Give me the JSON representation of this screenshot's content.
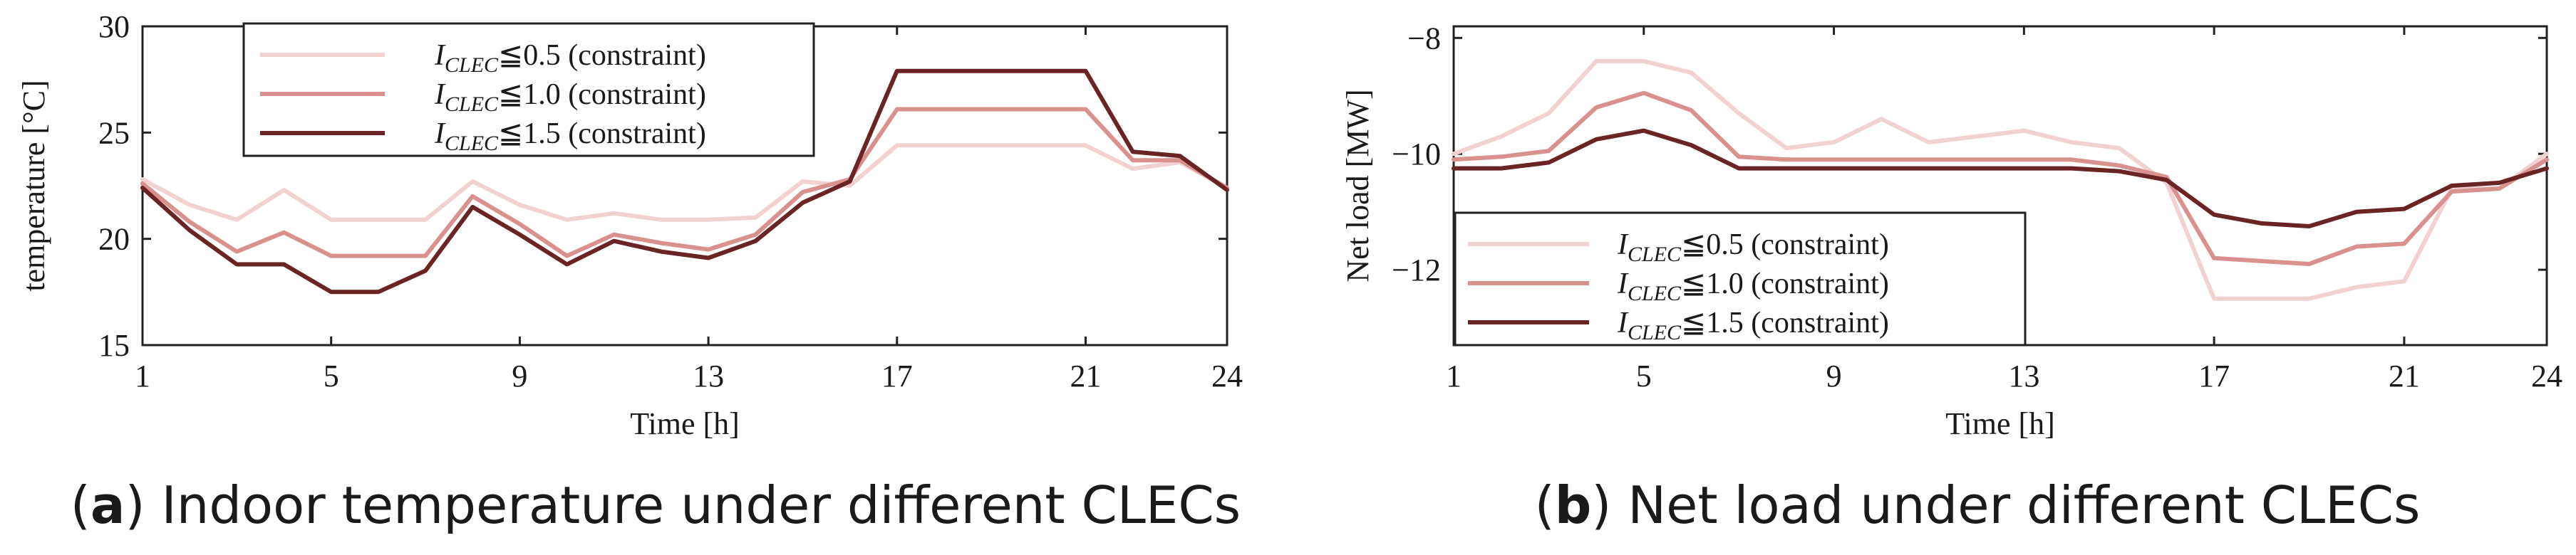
{
  "chart_data": [
    {
      "type": "line",
      "caption_letter": "a",
      "caption_text": "Indoor temperature under different CLECs",
      "xlabel": "Time [h]",
      "ylabel": "temperature [°C]",
      "xlim": [
        1,
        24
      ],
      "ylim": [
        15,
        30
      ],
      "xticks": [
        1,
        5,
        9,
        13,
        17,
        21,
        24
      ],
      "yticks": [
        15,
        20,
        25,
        30
      ],
      "x": [
        1,
        2,
        3,
        4,
        5,
        6,
        7,
        8,
        9,
        10,
        11,
        12,
        13,
        14,
        15,
        16,
        17,
        18,
        19,
        20,
        21,
        22,
        23,
        24
      ],
      "grid": false,
      "legend_position": "top-center",
      "series": [
        {
          "name": "I_CLEC≦0.5 (constraint)",
          "legend_main": "I",
          "legend_sub": "CLEC",
          "legend_rest": "≦0.5 (constraint)",
          "color": "#f2d1d1",
          "values": [
            22.8,
            21.6,
            20.9,
            22.3,
            20.9,
            20.9,
            20.9,
            22.7,
            21.6,
            20.9,
            21.2,
            20.9,
            20.9,
            21.0,
            22.7,
            22.5,
            24.4,
            24.4,
            24.4,
            24.4,
            24.4,
            23.3,
            23.6,
            22.4
          ]
        },
        {
          "name": "I_CLEC≦1.0 (constraint)",
          "legend_main": "I",
          "legend_sub": "CLEC",
          "legend_rest": "≦1.0 (constraint)",
          "color": "#d9918e",
          "values": [
            22.6,
            20.8,
            19.4,
            20.3,
            19.2,
            19.2,
            19.2,
            22.0,
            20.7,
            19.2,
            20.2,
            19.8,
            19.5,
            20.2,
            22.2,
            22.8,
            26.1,
            26.1,
            26.1,
            26.1,
            26.1,
            23.7,
            23.7,
            22.4
          ]
        },
        {
          "name": "I_CLEC≦1.5 (constraint)",
          "legend_main": "I",
          "legend_sub": "CLEC",
          "legend_rest": "≦1.5 (constraint)",
          "color": "#6a2424",
          "values": [
            22.4,
            20.4,
            18.8,
            18.8,
            17.5,
            17.5,
            18.5,
            21.5,
            20.2,
            18.8,
            19.9,
            19.4,
            19.1,
            19.9,
            21.7,
            22.7,
            27.9,
            27.9,
            27.9,
            27.9,
            27.9,
            24.1,
            23.9,
            22.3
          ]
        }
      ]
    },
    {
      "type": "line",
      "caption_letter": "b",
      "caption_text": "Net load under different CLECs",
      "xlabel": "Time [h]",
      "ylabel": "Net load [MW]",
      "xlim": [
        1,
        24
      ],
      "ylim": [
        -13.3,
        -7.8
      ],
      "xticks": [
        1,
        5,
        9,
        13,
        17,
        21,
        24
      ],
      "yticks": [
        -12,
        -10,
        -8
      ],
      "x": [
        1,
        2,
        3,
        4,
        5,
        6,
        7,
        8,
        9,
        10,
        11,
        12,
        13,
        14,
        15,
        16,
        17,
        18,
        19,
        20,
        21,
        22,
        23,
        24
      ],
      "grid": false,
      "legend_position": "bottom-left",
      "series": [
        {
          "name": "I_CLEC≦0.5 (constraint)",
          "legend_main": "I",
          "legend_sub": "CLEC",
          "legend_rest": "≦0.5 (constraint)",
          "color": "#f2d1d1",
          "values": [
            -10.0,
            -9.7,
            -9.3,
            -8.4,
            -8.4,
            -8.6,
            -9.3,
            -9.9,
            -9.8,
            -9.4,
            -9.8,
            -9.7,
            -9.6,
            -9.8,
            -9.9,
            -10.5,
            -12.5,
            -12.5,
            -12.5,
            -12.3,
            -12.2,
            -10.6,
            -10.6,
            -10.0
          ]
        },
        {
          "name": "I_CLEC≦1.0 (constraint)",
          "legend_main": "I",
          "legend_sub": "CLEC",
          "legend_rest": "≦1.0 (constraint)",
          "color": "#d9918e",
          "values": [
            -10.1,
            -10.05,
            -9.95,
            -9.2,
            -8.95,
            -9.25,
            -10.05,
            -10.1,
            -10.1,
            -10.1,
            -10.1,
            -10.1,
            -10.1,
            -10.1,
            -10.2,
            -10.4,
            -11.8,
            -11.85,
            -11.9,
            -11.6,
            -11.55,
            -10.65,
            -10.6,
            -10.1
          ]
        },
        {
          "name": "I_CLEC≦1.5 (constraint)",
          "legend_main": "I",
          "legend_sub": "CLEC",
          "legend_rest": "≦1.5 (constraint)",
          "color": "#6a2424",
          "values": [
            -10.25,
            -10.25,
            -10.15,
            -9.75,
            -9.6,
            -9.85,
            -10.25,
            -10.25,
            -10.25,
            -10.25,
            -10.25,
            -10.25,
            -10.25,
            -10.25,
            -10.3,
            -10.45,
            -11.05,
            -11.2,
            -11.25,
            -11.0,
            -10.95,
            -10.55,
            -10.5,
            -10.25
          ]
        }
      ]
    }
  ]
}
